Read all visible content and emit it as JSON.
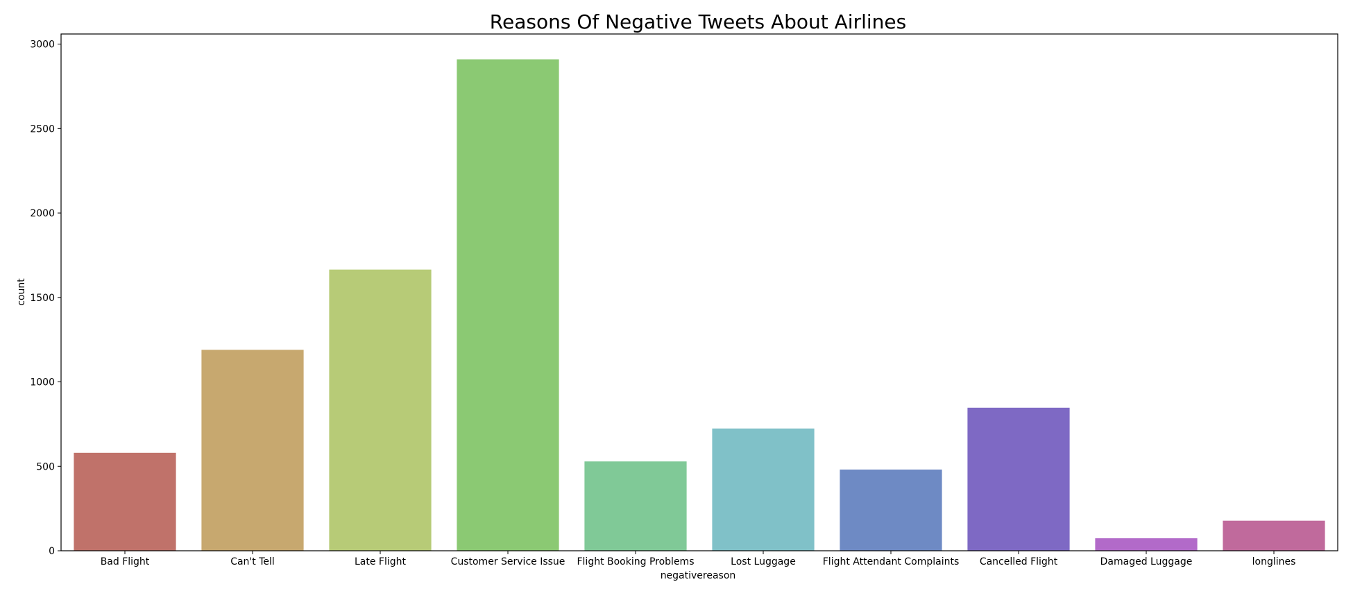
{
  "chart_data": {
    "type": "bar",
    "title": "Reasons Of Negative Tweets About Airlines",
    "xlabel": "negativereason",
    "ylabel": "count",
    "categories": [
      "Bad Flight",
      "Can't Tell",
      "Late Flight",
      "Customer Service Issue",
      "Flight Booking Problems",
      "Lost Luggage",
      "Flight Attendant Complaints",
      "Cancelled Flight",
      "Damaged Luggage",
      "longlines"
    ],
    "values": [
      580,
      1190,
      1665,
      2910,
      529,
      724,
      481,
      847,
      74,
      178
    ],
    "colors": [
      "#c0726a",
      "#c7a86f",
      "#b7cb77",
      "#8bc973",
      "#80c997",
      "#80c1c8",
      "#6e8ac4",
      "#7e69c4",
      "#b26ac9",
      "#c06a9c"
    ],
    "ylim": [
      0,
      3060
    ],
    "yticks": [
      0,
      500,
      1000,
      1500,
      2000,
      2500,
      3000
    ],
    "grid": false,
    "legend": "none"
  }
}
